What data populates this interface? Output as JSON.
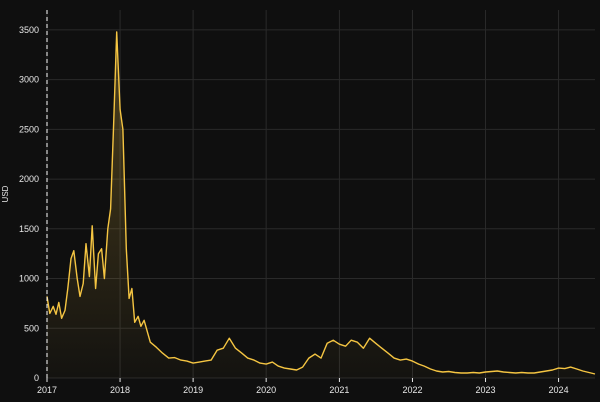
{
  "chart_data": {
    "type": "area",
    "title": "",
    "xlabel": "",
    "ylabel": "USD",
    "ylim": [
      0,
      3700
    ],
    "yticks": [
      0,
      500,
      1000,
      1500,
      2000,
      2500,
      3000,
      3500
    ],
    "xlim": [
      "2017-01-01",
      "2024-07-01"
    ],
    "xticks": [
      {
        "date": "2017-01-01",
        "label": "2017"
      },
      {
        "date": "2018-01-01",
        "label": "2018"
      },
      {
        "date": "2019-01-01",
        "label": "2019"
      },
      {
        "date": "2020-01-01",
        "label": "2020"
      },
      {
        "date": "2021-01-01",
        "label": "2021"
      },
      {
        "date": "2022-01-01",
        "label": "2022"
      },
      {
        "date": "2023-01-01",
        "label": "2023"
      },
      {
        "date": "2024-01-01",
        "label": "2024"
      }
    ],
    "grid": true,
    "colors": {
      "line": "#f5c542",
      "background": "#0f0f0f",
      "grid": "#2a2a2a",
      "text": "#e8e8e8",
      "marker": "#ffffff"
    },
    "marker_date": "2017-01-01",
    "series": [
      {
        "x": [
          "2017-01-01",
          "2017-01-15",
          "2017-02-01",
          "2017-02-15",
          "2017-03-01",
          "2017-03-15",
          "2017-04-01",
          "2017-04-15",
          "2017-05-01",
          "2017-05-15",
          "2017-06-01",
          "2017-06-15",
          "2017-07-01",
          "2017-07-15",
          "2017-08-01",
          "2017-08-15",
          "2017-09-01",
          "2017-09-15",
          "2017-10-01",
          "2017-10-15",
          "2017-11-01",
          "2017-11-15",
          "2017-12-01",
          "2017-12-15",
          "2018-01-01",
          "2018-01-15",
          "2018-02-01",
          "2018-02-15",
          "2018-03-01",
          "2018-03-15",
          "2018-04-01",
          "2018-04-15",
          "2018-05-01",
          "2018-06-01",
          "2018-07-01",
          "2018-08-01",
          "2018-09-01",
          "2018-10-01",
          "2018-11-01",
          "2018-12-01",
          "2019-01-01",
          "2019-02-01",
          "2019-03-01",
          "2019-04-01",
          "2019-05-01",
          "2019-06-01",
          "2019-07-01",
          "2019-08-01",
          "2019-09-01",
          "2019-10-01",
          "2019-11-01",
          "2019-12-01",
          "2020-01-01",
          "2020-02-01",
          "2020-03-01",
          "2020-04-01",
          "2020-05-01",
          "2020-06-01",
          "2020-07-01",
          "2020-08-01",
          "2020-09-01",
          "2020-10-01",
          "2020-11-01",
          "2020-12-01",
          "2021-01-01",
          "2021-02-01",
          "2021-03-01",
          "2021-04-01",
          "2021-05-01",
          "2021-06-01",
          "2021-07-01",
          "2021-08-01",
          "2021-09-01",
          "2021-10-01",
          "2021-11-01",
          "2021-12-01",
          "2022-01-01",
          "2022-02-01",
          "2022-03-01",
          "2022-04-01",
          "2022-05-01",
          "2022-06-01",
          "2022-07-01",
          "2022-08-01",
          "2022-09-01",
          "2022-10-01",
          "2022-11-01",
          "2022-12-01",
          "2023-01-01",
          "2023-02-01",
          "2023-03-01",
          "2023-04-01",
          "2023-05-01",
          "2023-06-01",
          "2023-07-01",
          "2023-08-01",
          "2023-09-01",
          "2023-10-01",
          "2023-11-01",
          "2023-12-01",
          "2024-01-01",
          "2024-02-01",
          "2024-03-01",
          "2024-04-01",
          "2024-05-01",
          "2024-06-01",
          "2024-07-01"
        ],
        "y": [
          820,
          650,
          720,
          640,
          760,
          600,
          680,
          900,
          1200,
          1280,
          1000,
          820,
          950,
          1350,
          1020,
          1530,
          900,
          1250,
          1300,
          1000,
          1500,
          1700,
          2600,
          3480,
          2700,
          2500,
          1300,
          800,
          900,
          560,
          620,
          520,
          580,
          360,
          310,
          250,
          200,
          205,
          180,
          170,
          150,
          160,
          170,
          180,
          280,
          300,
          400,
          300,
          250,
          200,
          180,
          150,
          140,
          160,
          120,
          100,
          90,
          80,
          110,
          200,
          240,
          200,
          350,
          380,
          340,
          320,
          380,
          360,
          300,
          400,
          350,
          300,
          250,
          200,
          180,
          190,
          170,
          140,
          120,
          90,
          70,
          60,
          65,
          55,
          50,
          50,
          55,
          50,
          60,
          65,
          70,
          60,
          55,
          50,
          55,
          50,
          50,
          60,
          70,
          80,
          100,
          95,
          110,
          90,
          70,
          55,
          40
        ]
      }
    ]
  }
}
